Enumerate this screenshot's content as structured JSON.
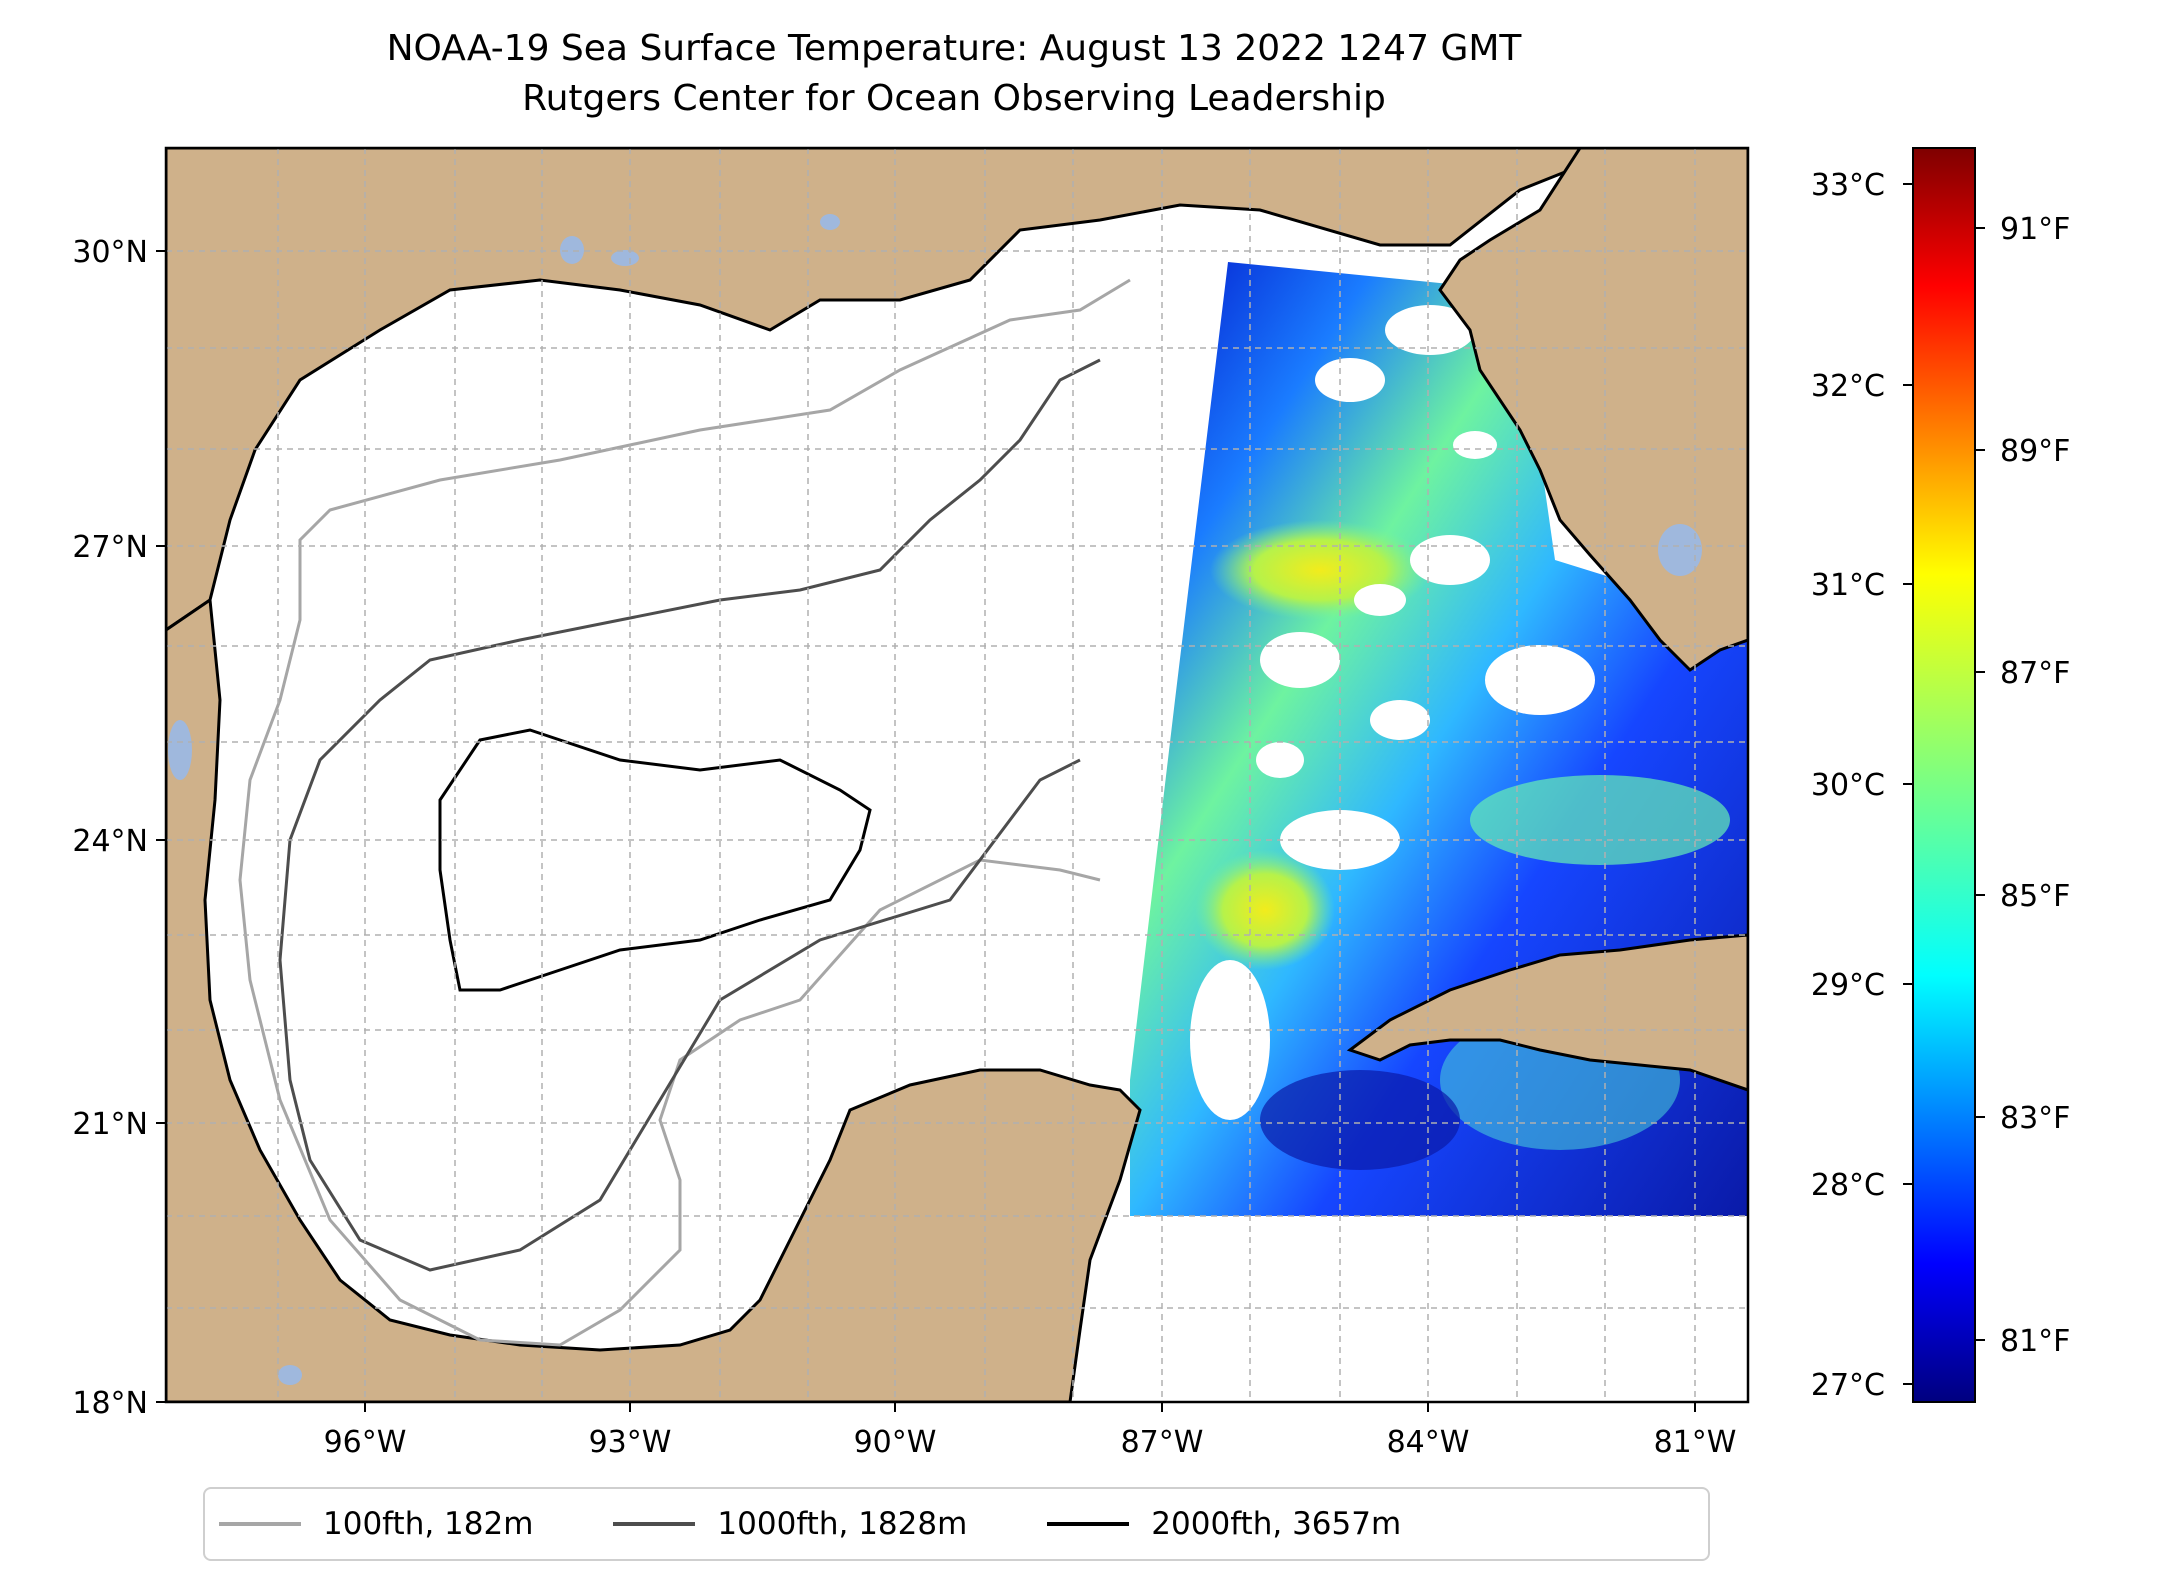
{
  "title": {
    "line1": "NOAA-19 Sea Surface Temperature: August 13 2022 1247 GMT",
    "line2": "Rutgers Center for Ocean Observing Leadership"
  },
  "map": {
    "lon_range": [
      -98,
      -80.2
    ],
    "lat_range": [
      18,
      30.8
    ],
    "lat_ticks": [
      {
        "value": 30,
        "label": "30°N"
      },
      {
        "value": 27,
        "label": "27°N"
      },
      {
        "value": 24,
        "label": "24°N"
      },
      {
        "value": 21,
        "label": "21°N"
      },
      {
        "value": 18,
        "label": "18°N"
      }
    ],
    "lon_ticks": [
      {
        "value": -96,
        "label": "96°W"
      },
      {
        "value": -93,
        "label": "93°W"
      },
      {
        "value": -90,
        "label": "90°W"
      },
      {
        "value": -87,
        "label": "87°W"
      },
      {
        "value": -84,
        "label": "84°W"
      },
      {
        "value": -81,
        "label": "81°W"
      }
    ],
    "gridlines": true,
    "land_color": "#cfb18a",
    "lake_color": "#9fb8dd",
    "coast_color": "#000000"
  },
  "colorbar": {
    "colormap": "jet",
    "celsius_ticks": [
      "33°C",
      "32°C",
      "31°C",
      "30°C",
      "29°C",
      "28°C",
      "27°C"
    ],
    "fahrenheit_ticks": [
      "91°F",
      "89°F",
      "87°F",
      "85°F",
      "83°F",
      "81°F"
    ]
  },
  "legend": {
    "entries": [
      {
        "label": "100fth, 182m",
        "color": "#a6a6a6"
      },
      {
        "label": "1000fth, 1828m",
        "color": "#4d4d4d"
      },
      {
        "label": "2000fth, 3657m",
        "color": "#000000"
      }
    ]
  }
}
